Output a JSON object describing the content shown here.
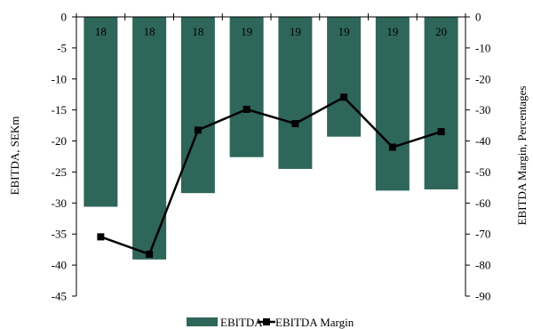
{
  "chart_data": {
    "type": "bar+line",
    "categories": [
      "18",
      "18",
      "18",
      "19",
      "19",
      "19",
      "19",
      "20"
    ],
    "series": [
      {
        "name": "EBITDA",
        "type": "bar",
        "axis": "left",
        "color": "#2e6659",
        "values": [
          -30.6,
          -39.1,
          -28.4,
          -22.6,
          -24.5,
          -19.3,
          -28.0,
          -27.8
        ]
      },
      {
        "name": "EBITDA Margin",
        "type": "line",
        "axis": "right",
        "color": "#000000",
        "marker": "square",
        "values": [
          -70.9,
          -76.5,
          -36.5,
          -29.8,
          -34.4,
          -25.9,
          -42.0,
          -37.0
        ]
      }
    ],
    "ylabel_left": "EBITDA, SEKm",
    "ylabel_right": "EBITDA Margin, Percentages",
    "ylim_left": [
      -45,
      0
    ],
    "ylim_right": [
      -90,
      0
    ],
    "yticks_left": [
      "0",
      "-5",
      "-10",
      "-15",
      "-20",
      "-25",
      "-30",
      "-35",
      "-40",
      "-45"
    ],
    "yticks_right": [
      "0",
      "-10",
      "-20",
      "-30",
      "-40",
      "-50",
      "-60",
      "-70",
      "-80",
      "-90"
    ],
    "category_labels_position": "top",
    "grid": false,
    "legend_position": "bottom"
  }
}
